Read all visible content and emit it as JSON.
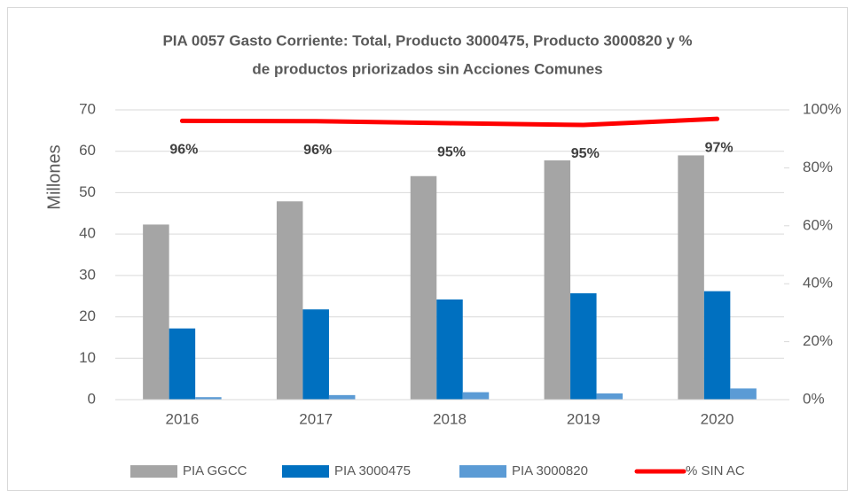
{
  "chart_data": {
    "type": "bar",
    "title": [
      "PIA 0057 Gasto Corriente: Total, Producto 3000475, Producto 3000820 y %",
      "de productos priorizados sin Acciones Comunes"
    ],
    "y_label": "Millones",
    "categories": [
      "2016",
      "2017",
      "2018",
      "2019",
      "2020"
    ],
    "series": [
      {
        "name": "PIA GGCC",
        "color": "#a5a5a5",
        "values": [
          42.3,
          47.9,
          54,
          57.8,
          59
        ]
      },
      {
        "name": "PIA 3000475",
        "color": "#0070c0",
        "values": [
          17.2,
          21.8,
          24.2,
          25.7,
          26.2
        ]
      },
      {
        "name": "PIA 3000820",
        "color": "#5b9bd5",
        "values": [
          0.6,
          1.1,
          1.8,
          1.5,
          2.7
        ]
      },
      {
        "name": "% SIN AC",
        "color": "#ff0000",
        "type": "line",
        "axis": "y2",
        "values": [
          96.2,
          96.1,
          95.4,
          94.8,
          96.9
        ],
        "value_labels": [
          "96%",
          "96%",
          "95%",
          "95%",
          "97%"
        ]
      }
    ],
    "ylim": [
      0,
      70
    ],
    "yticks": [
      0,
      10,
      20,
      30,
      40,
      50,
      60,
      70
    ],
    "y2lim": [
      0,
      100
    ],
    "y2ticks": [
      {
        "value": 0,
        "label": "0%"
      },
      {
        "value": 20,
        "label": "20%"
      },
      {
        "value": 40,
        "label": "40%"
      },
      {
        "value": 60,
        "label": "60%"
      },
      {
        "value": 80,
        "label": "80%"
      },
      {
        "value": 100,
        "label": "100%"
      }
    ],
    "grid": true,
    "legend": "bottom"
  }
}
